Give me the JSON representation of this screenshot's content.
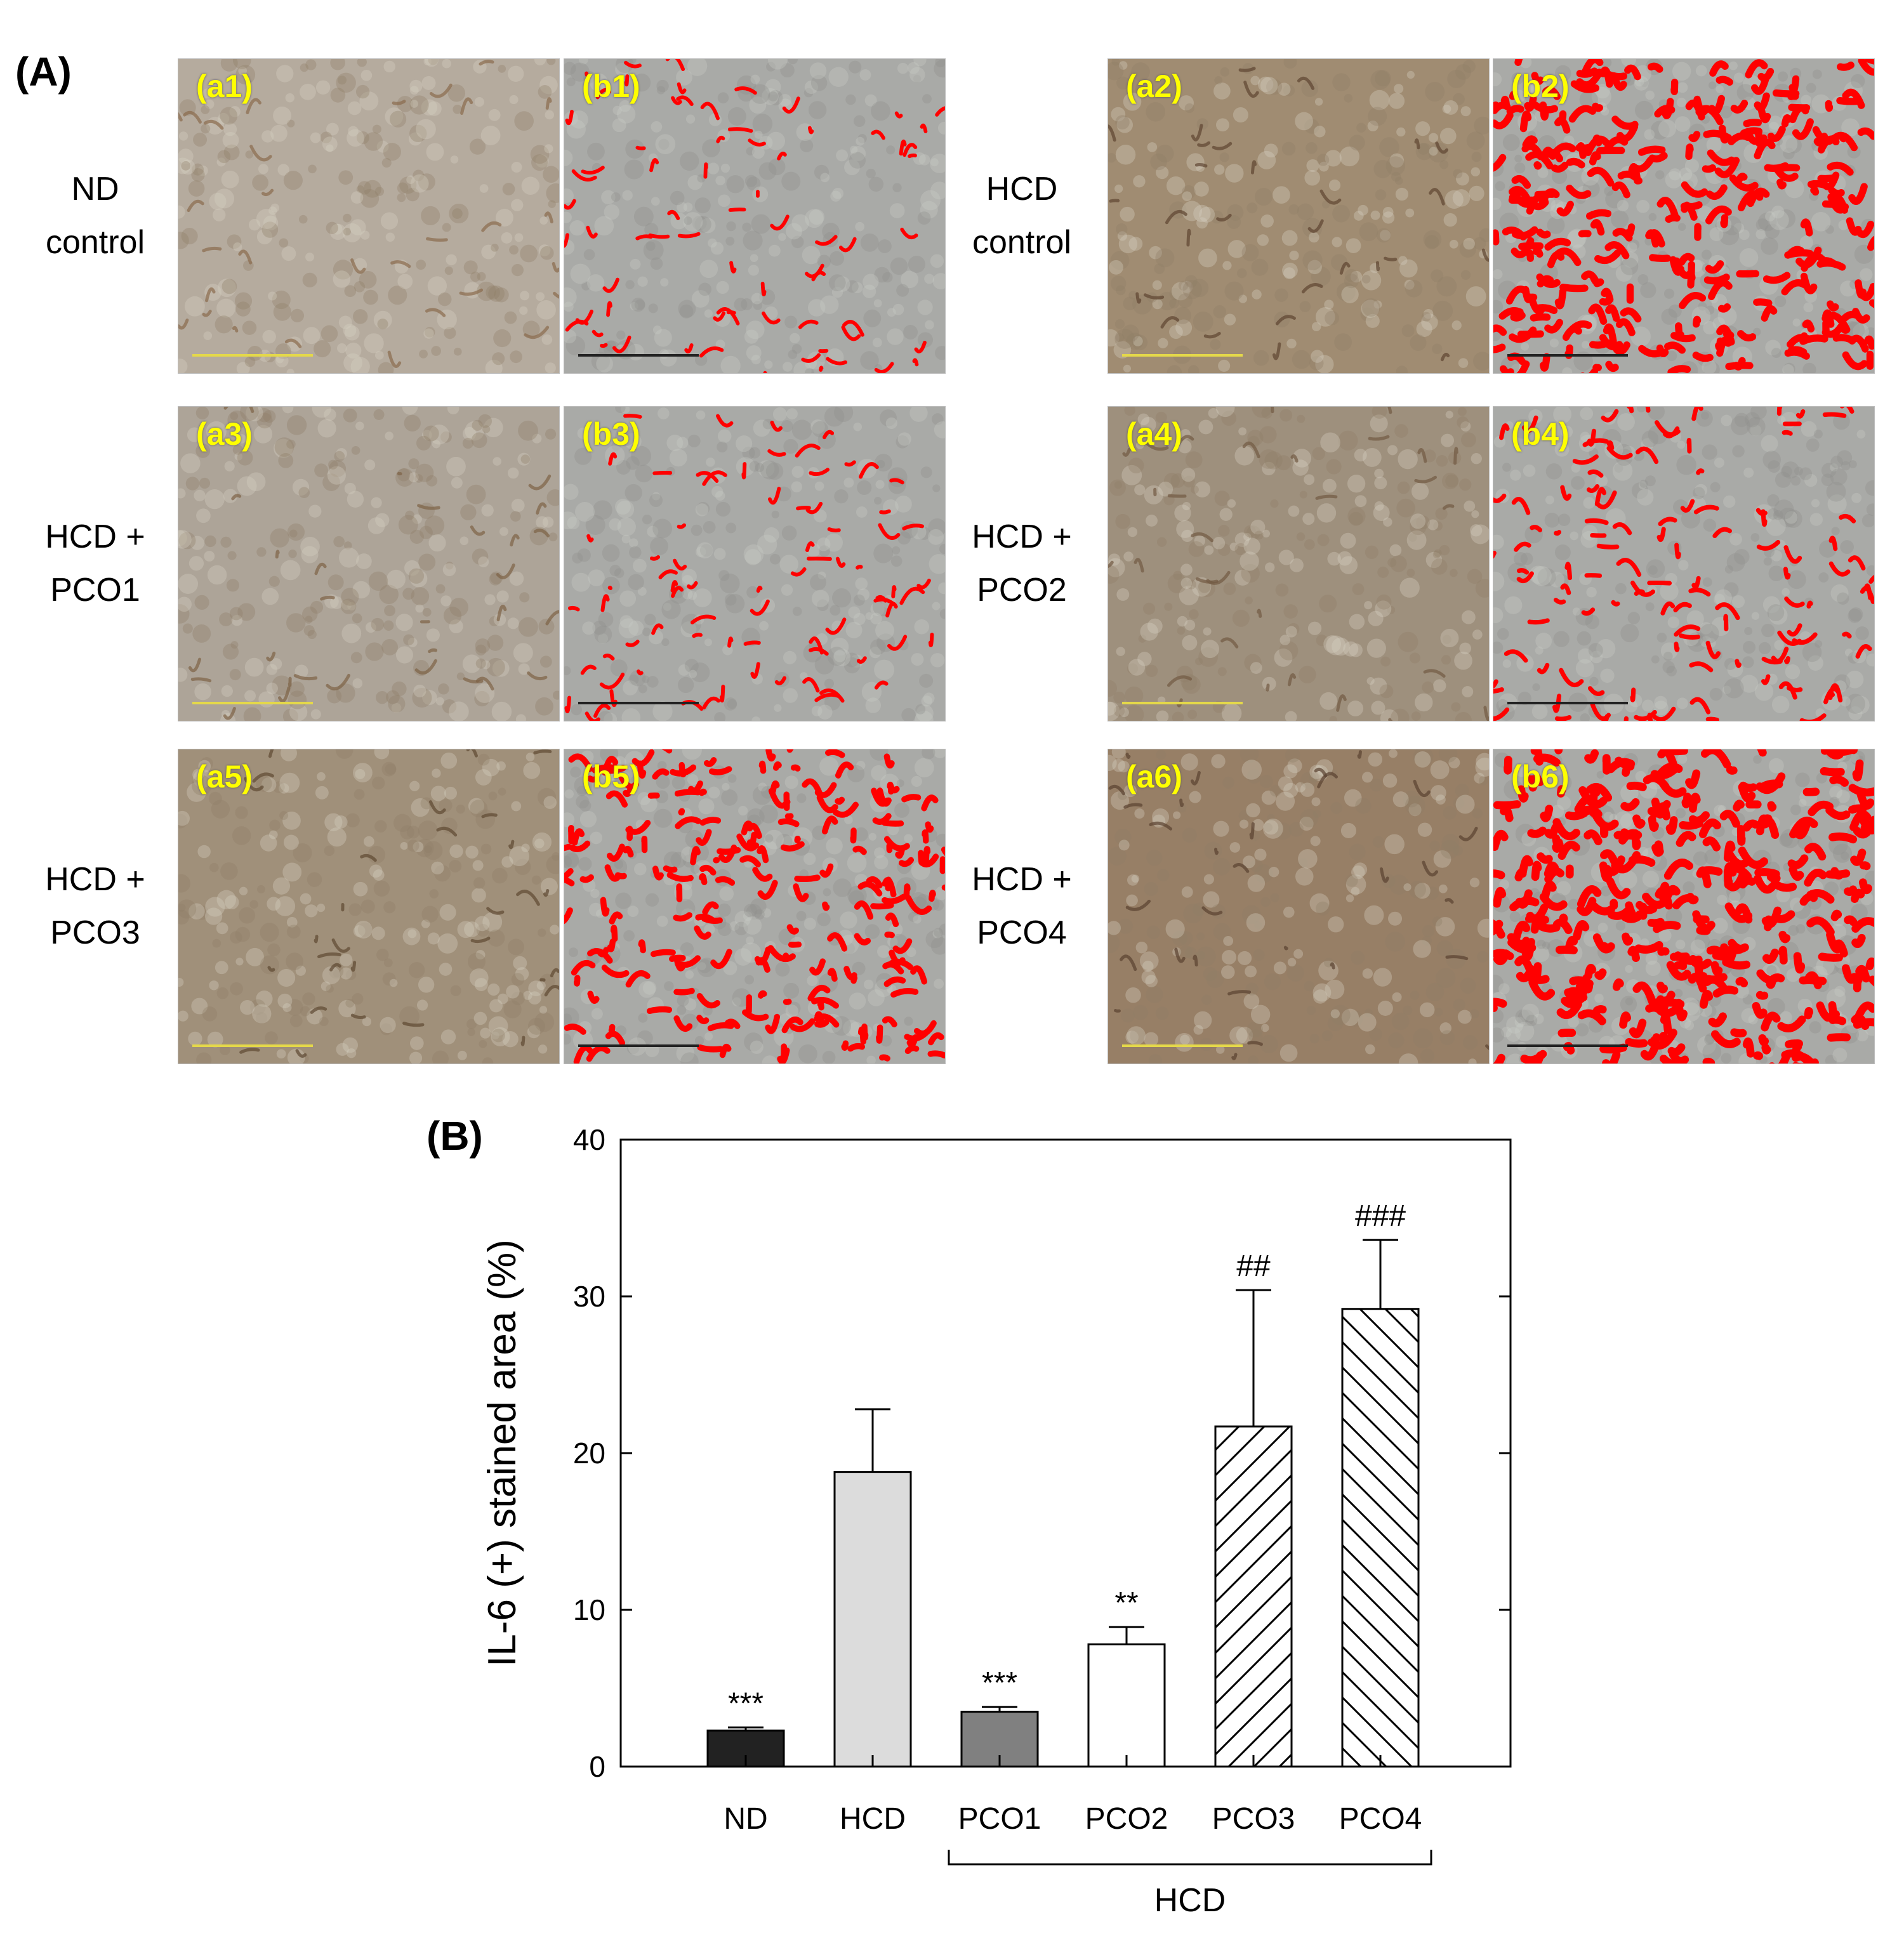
{
  "panel_a": {
    "label": "(A)",
    "rows": [
      {
        "left": {
          "text": [
            "ND",
            "control"
          ],
          "a": "(a1)",
          "b": "(b1)",
          "tone": "#b5ab9e",
          "stain": "#8a6b4d",
          "red": 0.06
        },
        "right": {
          "text": [
            "HCD",
            "control"
          ],
          "a": "(a2)",
          "b": "(b2)",
          "tone": "#a08c72",
          "stain": "#5e4530",
          "red": 0.45
        }
      },
      {
        "left": {
          "text": [
            "HCD +",
            "PCO1"
          ],
          "a": "(a3)",
          "b": "(b3)",
          "tone": "#ada498",
          "stain": "#7d6246",
          "red": 0.07
        },
        "right": {
          "text": [
            "HCD +",
            "PCO2"
          ],
          "a": "(a4)",
          "b": "(b4)",
          "tone": "#9e907d",
          "stain": "#725a43",
          "red": 0.15
        }
      },
      {
        "left": {
          "text": [
            "HCD +",
            "PCO3"
          ],
          "a": "(a5)",
          "b": "(b5)",
          "tone": "#a0907a",
          "stain": "#5e4832",
          "red": 0.32
        },
        "right": {
          "text": [
            "HCD +",
            "PCO4"
          ],
          "a": "(a6)",
          "b": "(b6)",
          "tone": "#977f66",
          "stain": "#5a4230",
          "red": 0.55
        }
      }
    ]
  },
  "panel_b_label": "(B)",
  "colors": {
    "tag": "#ffff00",
    "overlay_red": "#ff0000"
  },
  "chart_data": {
    "type": "bar",
    "ylabel": "IL-6 (+) stained area (%)",
    "xlabel": "",
    "ylim": [
      0,
      40
    ],
    "yticks": [
      0,
      10,
      20,
      30,
      40
    ],
    "categories": [
      "ND",
      "HCD",
      "PCO1",
      "PCO2",
      "PCO3",
      "PCO4"
    ],
    "values": [
      2.3,
      18.8,
      3.5,
      7.8,
      21.7,
      29.2
    ],
    "errors": [
      0.2,
      4.0,
      0.3,
      1.1,
      8.7,
      4.4
    ],
    "annotations": [
      "***",
      "",
      "***",
      "**",
      "##",
      "###"
    ],
    "fills": [
      "#222222",
      "#dcdcdc",
      "#808080",
      "#ffffff",
      "hatch-forward",
      "hatch-back"
    ],
    "group_bracket": {
      "label": "HCD",
      "from": "PCO1",
      "to": "PCO4"
    }
  }
}
